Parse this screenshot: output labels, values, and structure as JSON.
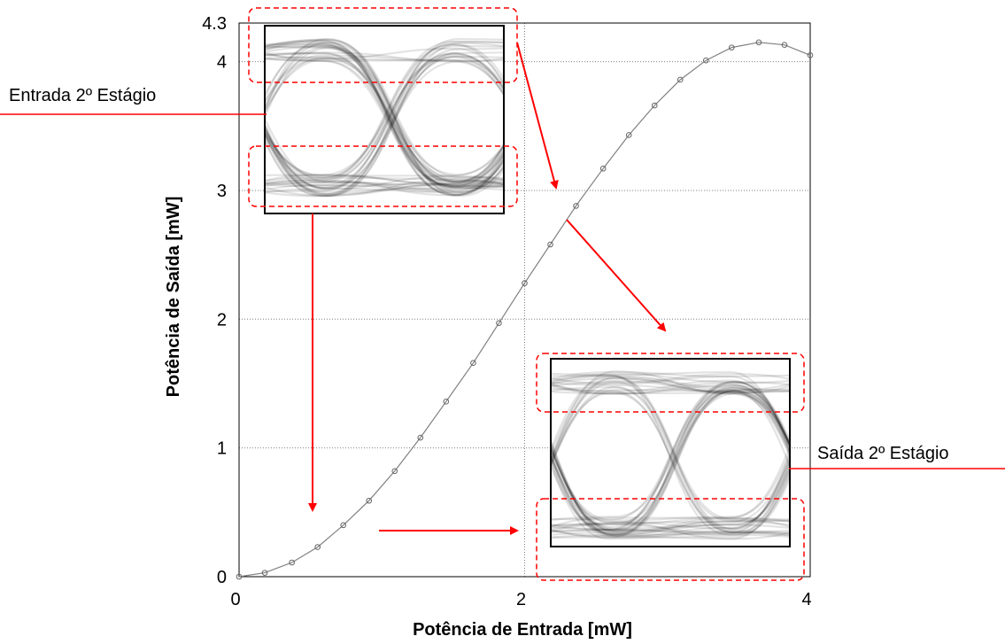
{
  "chart_data": {
    "type": "line",
    "title": "",
    "xlabel": "Potência de Entrada [mW]",
    "ylabel": "Potência de Saída [mW]",
    "xlim": [
      0,
      4
    ],
    "ylim": [
      0,
      4.3
    ],
    "x_ticks": [
      "0",
      "2",
      "4"
    ],
    "y_ticks": [
      "0",
      "1",
      "2",
      "3",
      "4",
      "4.3"
    ],
    "grid": true,
    "series": [
      {
        "x": [
          0,
          0.18,
          0.37,
          0.55,
          0.73,
          0.91,
          1.09,
          1.27,
          1.45,
          1.64,
          1.82,
          2.0,
          2.18,
          2.36,
          2.55,
          2.73,
          2.91,
          3.09,
          3.27,
          3.45,
          3.64,
          3.82,
          4.0
        ],
        "values": [
          0.0,
          0.03,
          0.11,
          0.23,
          0.4,
          0.59,
          0.82,
          1.08,
          1.36,
          1.66,
          1.97,
          2.28,
          2.58,
          2.88,
          3.17,
          3.43,
          3.66,
          3.86,
          4.01,
          4.11,
          4.15,
          4.13,
          4.05
        ],
        "color": "#808080"
      }
    ],
    "annotations": {
      "input_label": "Entrada 2º Estágio",
      "output_label": "Saída 2º Estágio"
    },
    "colors": {
      "arrow": "#ff0000",
      "curve": "#808080",
      "grid": "#808080",
      "eye": "#000000"
    }
  }
}
